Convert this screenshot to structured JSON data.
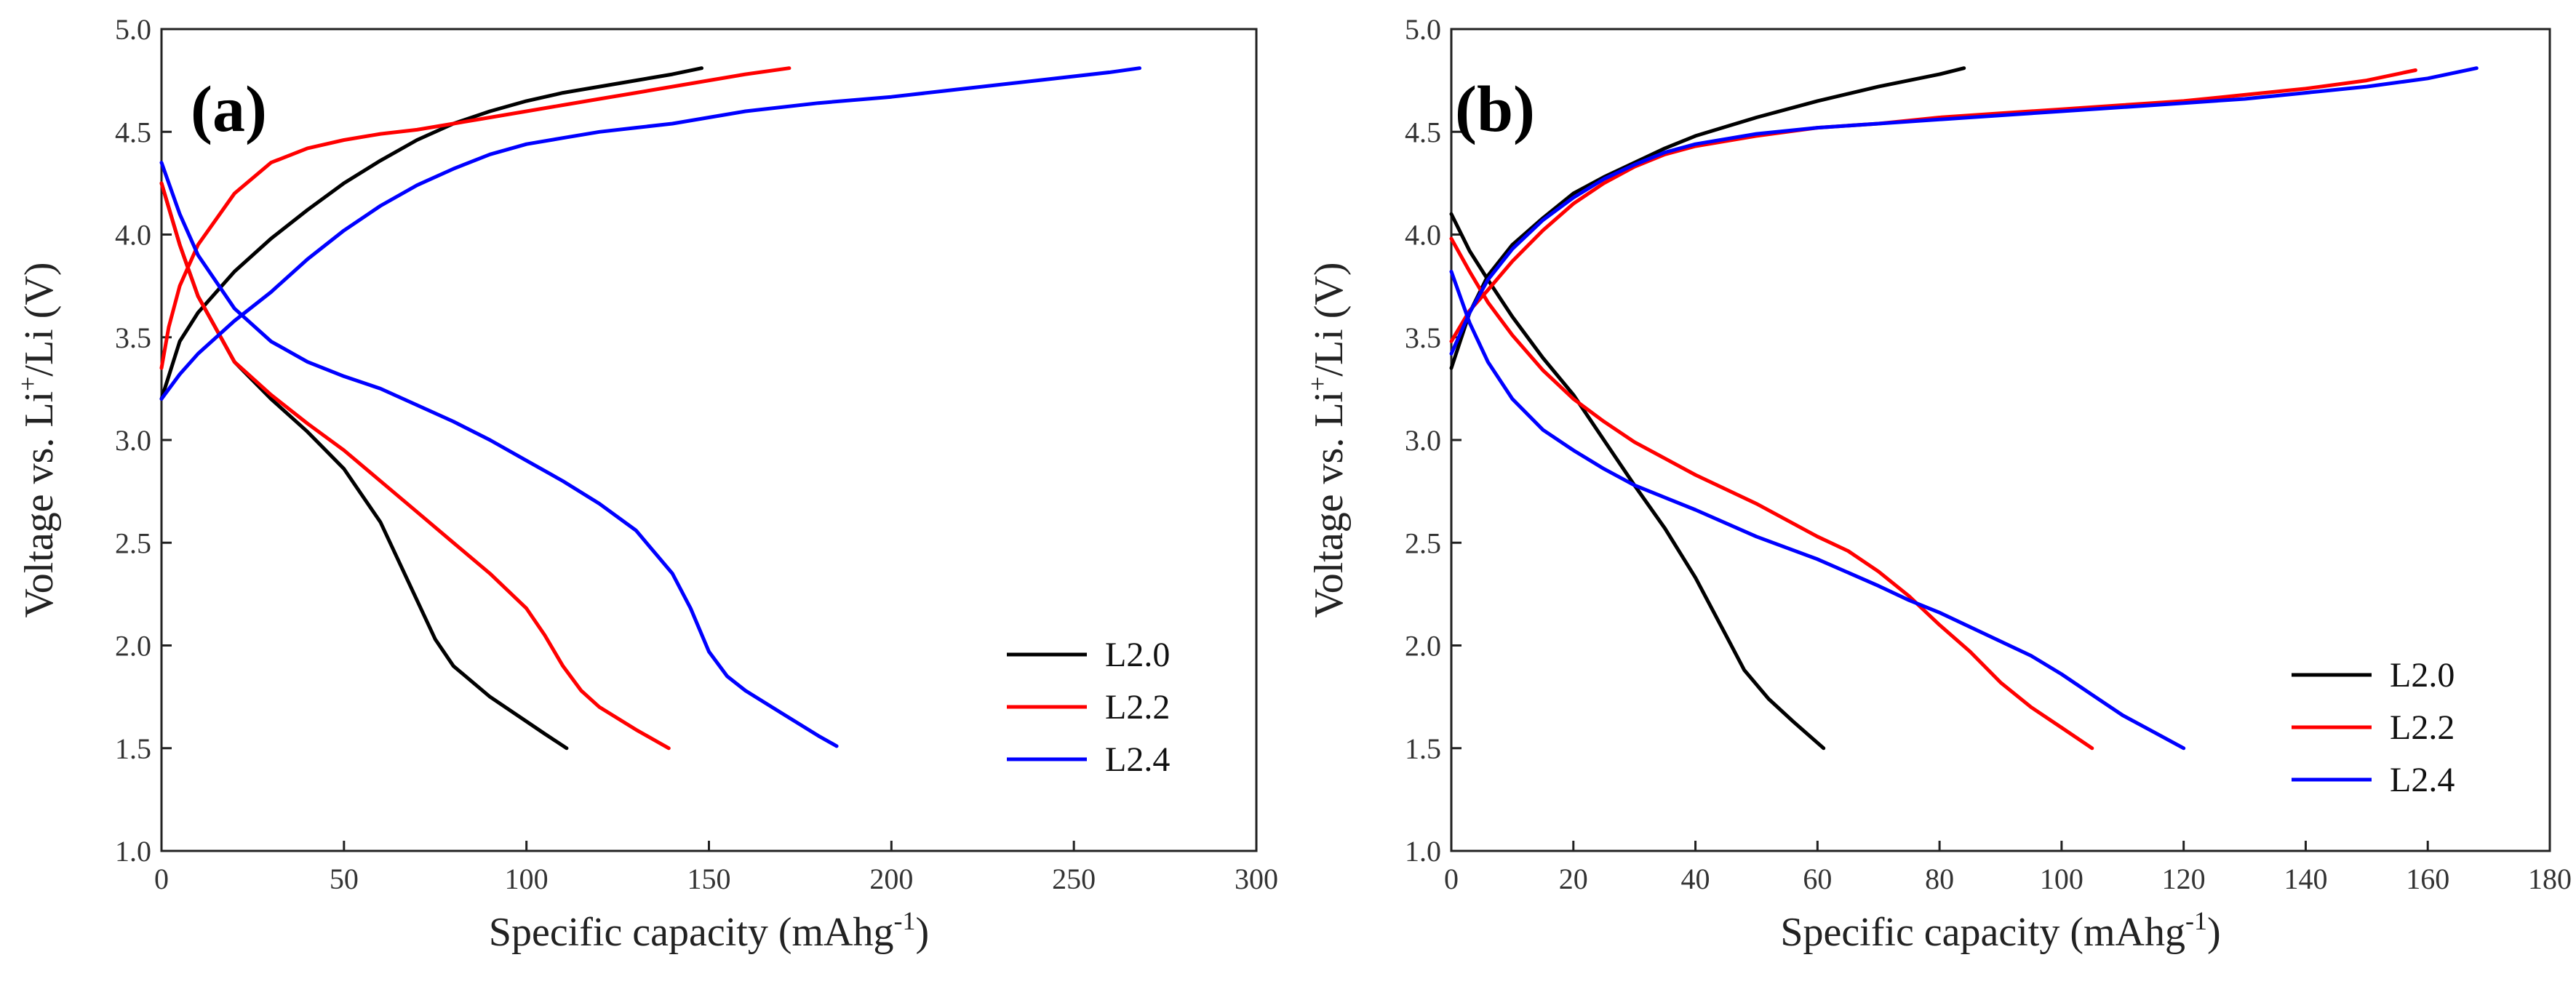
{
  "chart_data": [
    {
      "type": "line",
      "panel_label": "(a)",
      "xlabel_main": "Specific capacity (mAhg",
      "xlabel_sup": "-1",
      "xlabel_end": ")",
      "ylabel_main": "Voltage vs. Li",
      "ylabel_sup": "+",
      "ylabel_end": "/Li (V)",
      "xlim": [
        0,
        300
      ],
      "ylim": [
        1.0,
        5.0
      ],
      "xticks": [
        0,
        50,
        100,
        150,
        200,
        250,
        300
      ],
      "yticks": [
        1.0,
        1.5,
        2.0,
        2.5,
        3.0,
        3.5,
        4.0,
        4.5,
        5.0
      ],
      "legend_position": "bottom-right",
      "series": [
        {
          "name": "L2.0",
          "color": "#000000",
          "charge": [
            [
              0,
              3.2
            ],
            [
              5,
              3.48
            ],
            [
              10,
              3.62
            ],
            [
              20,
              3.82
            ],
            [
              30,
              3.98
            ],
            [
              40,
              4.12
            ],
            [
              50,
              4.25
            ],
            [
              60,
              4.36
            ],
            [
              70,
              4.46
            ],
            [
              80,
              4.54
            ],
            [
              90,
              4.6
            ],
            [
              100,
              4.65
            ],
            [
              110,
              4.69
            ],
            [
              120,
              4.72
            ],
            [
              130,
              4.75
            ],
            [
              140,
              4.78
            ],
            [
              148,
              4.81
            ]
          ],
          "discharge": [
            [
              0,
              4.25
            ],
            [
              5,
              3.95
            ],
            [
              10,
              3.7
            ],
            [
              20,
              3.38
            ],
            [
              30,
              3.2
            ],
            [
              40,
              3.04
            ],
            [
              50,
              2.86
            ],
            [
              60,
              2.6
            ],
            [
              70,
              2.22
            ],
            [
              75,
              2.03
            ],
            [
              80,
              1.9
            ],
            [
              90,
              1.75
            ],
            [
              100,
              1.63
            ],
            [
              105,
              1.57
            ],
            [
              111,
              1.5
            ]
          ]
        },
        {
          "name": "L2.2",
          "color": "#ff0000",
          "charge": [
            [
              0,
              3.35
            ],
            [
              2,
              3.55
            ],
            [
              5,
              3.75
            ],
            [
              10,
              3.95
            ],
            [
              20,
              4.2
            ],
            [
              30,
              4.35
            ],
            [
              40,
              4.42
            ],
            [
              50,
              4.46
            ],
            [
              60,
              4.49
            ],
            [
              70,
              4.51
            ],
            [
              80,
              4.54
            ],
            [
              90,
              4.57
            ],
            [
              100,
              4.6
            ],
            [
              110,
              4.63
            ],
            [
              120,
              4.66
            ],
            [
              130,
              4.69
            ],
            [
              140,
              4.72
            ],
            [
              150,
              4.75
            ],
            [
              160,
              4.78
            ],
            [
              172,
              4.81
            ]
          ],
          "discharge": [
            [
              0,
              4.25
            ],
            [
              5,
              3.95
            ],
            [
              10,
              3.7
            ],
            [
              20,
              3.38
            ],
            [
              30,
              3.22
            ],
            [
              40,
              3.08
            ],
            [
              50,
              2.95
            ],
            [
              60,
              2.8
            ],
            [
              70,
              2.65
            ],
            [
              80,
              2.5
            ],
            [
              90,
              2.35
            ],
            [
              100,
              2.18
            ],
            [
              105,
              2.05
            ],
            [
              110,
              1.9
            ],
            [
              115,
              1.78
            ],
            [
              120,
              1.7
            ],
            [
              130,
              1.59
            ],
            [
              139,
              1.5
            ]
          ]
        },
        {
          "name": "L2.4",
          "color": "#0000ff",
          "charge": [
            [
              0,
              3.2
            ],
            [
              5,
              3.32
            ],
            [
              10,
              3.42
            ],
            [
              20,
              3.58
            ],
            [
              30,
              3.72
            ],
            [
              40,
              3.88
            ],
            [
              50,
              4.02
            ],
            [
              60,
              4.14
            ],
            [
              70,
              4.24
            ],
            [
              80,
              4.32
            ],
            [
              90,
              4.39
            ],
            [
              100,
              4.44
            ],
            [
              110,
              4.47
            ],
            [
              120,
              4.5
            ],
            [
              130,
              4.52
            ],
            [
              140,
              4.54
            ],
            [
              150,
              4.57
            ],
            [
              160,
              4.6
            ],
            [
              180,
              4.64
            ],
            [
              200,
              4.67
            ],
            [
              220,
              4.71
            ],
            [
              240,
              4.75
            ],
            [
              260,
              4.79
            ],
            [
              268,
              4.81
            ]
          ],
          "discharge": [
            [
              0,
              4.35
            ],
            [
              5,
              4.1
            ],
            [
              10,
              3.9
            ],
            [
              20,
              3.64
            ],
            [
              30,
              3.48
            ],
            [
              40,
              3.38
            ],
            [
              50,
              3.31
            ],
            [
              60,
              3.25
            ],
            [
              70,
              3.17
            ],
            [
              80,
              3.09
            ],
            [
              90,
              3.0
            ],
            [
              100,
              2.9
            ],
            [
              110,
              2.8
            ],
            [
              120,
              2.69
            ],
            [
              130,
              2.56
            ],
            [
              140,
              2.35
            ],
            [
              145,
              2.18
            ],
            [
              150,
              1.97
            ],
            [
              155,
              1.85
            ],
            [
              160,
              1.78
            ],
            [
              170,
              1.67
            ],
            [
              180,
              1.56
            ],
            [
              185,
              1.51
            ]
          ]
        }
      ]
    },
    {
      "type": "line",
      "panel_label": "(b)",
      "xlabel_main": "Specific capacity (mAhg",
      "xlabel_sup": "-1",
      "xlabel_end": ")",
      "ylabel_main": "Voltage vs. Li",
      "ylabel_sup": "+",
      "ylabel_end": "/Li (V)",
      "xlim": [
        0,
        180
      ],
      "ylim": [
        1.0,
        5.0
      ],
      "xticks": [
        0,
        20,
        40,
        60,
        80,
        100,
        120,
        140,
        160,
        180
      ],
      "yticks": [
        1.0,
        1.5,
        2.0,
        2.5,
        3.0,
        3.5,
        4.0,
        4.5,
        5.0
      ],
      "legend_position": "bottom-right",
      "series": [
        {
          "name": "L2.0",
          "color": "#000000",
          "charge": [
            [
              0,
              3.35
            ],
            [
              3,
              3.62
            ],
            [
              6,
              3.8
            ],
            [
              10,
              3.95
            ],
            [
              15,
              4.08
            ],
            [
              20,
              4.2
            ],
            [
              25,
              4.28
            ],
            [
              30,
              4.35
            ],
            [
              35,
              4.42
            ],
            [
              40,
              4.48
            ],
            [
              50,
              4.57
            ],
            [
              60,
              4.65
            ],
            [
              70,
              4.72
            ],
            [
              80,
              4.78
            ],
            [
              84,
              4.81
            ]
          ],
          "discharge": [
            [
              0,
              4.1
            ],
            [
              3,
              3.92
            ],
            [
              6,
              3.78
            ],
            [
              10,
              3.6
            ],
            [
              15,
              3.4
            ],
            [
              20,
              3.22
            ],
            [
              25,
              3.0
            ],
            [
              30,
              2.78
            ],
            [
              35,
              2.57
            ],
            [
              40,
              2.33
            ],
            [
              45,
              2.05
            ],
            [
              48,
              1.88
            ],
            [
              52,
              1.74
            ],
            [
              56,
              1.63
            ],
            [
              61,
              1.5
            ]
          ]
        },
        {
          "name": "L2.2",
          "color": "#ff0000",
          "charge": [
            [
              0,
              3.48
            ],
            [
              3,
              3.63
            ],
            [
              6,
              3.73
            ],
            [
              10,
              3.87
            ],
            [
              15,
              4.02
            ],
            [
              20,
              4.15
            ],
            [
              25,
              4.25
            ],
            [
              30,
              4.33
            ],
            [
              35,
              4.39
            ],
            [
              40,
              4.43
            ],
            [
              50,
              4.48
            ],
            [
              60,
              4.52
            ],
            [
              70,
              4.54
            ],
            [
              80,
              4.57
            ],
            [
              90,
              4.59
            ],
            [
              100,
              4.61
            ],
            [
              110,
              4.63
            ],
            [
              120,
              4.65
            ],
            [
              130,
              4.68
            ],
            [
              140,
              4.71
            ],
            [
              150,
              4.75
            ],
            [
              158,
              4.8
            ]
          ],
          "discharge": [
            [
              0,
              3.98
            ],
            [
              3,
              3.82
            ],
            [
              6,
              3.67
            ],
            [
              10,
              3.51
            ],
            [
              15,
              3.34
            ],
            [
              20,
              3.2
            ],
            [
              25,
              3.09
            ],
            [
              30,
              2.99
            ],
            [
              40,
              2.83
            ],
            [
              50,
              2.69
            ],
            [
              60,
              2.53
            ],
            [
              65,
              2.46
            ],
            [
              70,
              2.36
            ],
            [
              75,
              2.24
            ],
            [
              80,
              2.1
            ],
            [
              85,
              1.97
            ],
            [
              90,
              1.82
            ],
            [
              95,
              1.7
            ],
            [
              100,
              1.6
            ],
            [
              105,
              1.5
            ]
          ]
        },
        {
          "name": "L2.4",
          "color": "#0000ff",
          "charge": [
            [
              0,
              3.42
            ],
            [
              3,
              3.62
            ],
            [
              6,
              3.78
            ],
            [
              10,
              3.93
            ],
            [
              15,
              4.07
            ],
            [
              20,
              4.18
            ],
            [
              25,
              4.27
            ],
            [
              30,
              4.34
            ],
            [
              35,
              4.4
            ],
            [
              40,
              4.44
            ],
            [
              50,
              4.49
            ],
            [
              60,
              4.52
            ],
            [
              70,
              4.54
            ],
            [
              80,
              4.56
            ],
            [
              90,
              4.58
            ],
            [
              100,
              4.6
            ],
            [
              110,
              4.62
            ],
            [
              120,
              4.64
            ],
            [
              130,
              4.66
            ],
            [
              140,
              4.69
            ],
            [
              150,
              4.72
            ],
            [
              160,
              4.76
            ],
            [
              168,
              4.81
            ]
          ],
          "discharge": [
            [
              0,
              3.82
            ],
            [
              3,
              3.57
            ],
            [
              6,
              3.38
            ],
            [
              10,
              3.2
            ],
            [
              15,
              3.05
            ],
            [
              20,
              2.95
            ],
            [
              25,
              2.86
            ],
            [
              30,
              2.78
            ],
            [
              40,
              2.66
            ],
            [
              50,
              2.53
            ],
            [
              60,
              2.42
            ],
            [
              70,
              2.29
            ],
            [
              75,
              2.22
            ],
            [
              80,
              2.16
            ],
            [
              90,
              2.02
            ],
            [
              95,
              1.95
            ],
            [
              100,
              1.86
            ],
            [
              105,
              1.76
            ],
            [
              110,
              1.66
            ],
            [
              115,
              1.58
            ],
            [
              120,
              1.5
            ]
          ]
        }
      ]
    }
  ]
}
